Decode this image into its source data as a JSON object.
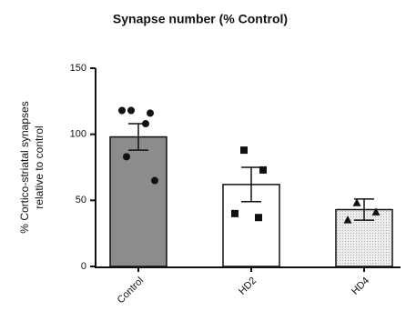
{
  "chart_data": {
    "type": "bar",
    "title": "Synapse number (% Control)",
    "y_label": [
      "% Cortico-striatal synapses",
      "relative to control"
    ],
    "categories": [
      "Control",
      "HD2",
      "HD4"
    ],
    "values": [
      98,
      62,
      43
    ],
    "errors": [
      10,
      13,
      8
    ],
    "points": [
      [
        118,
        116,
        118,
        108,
        83,
        65
      ],
      [
        88,
        73,
        40,
        37
      ],
      [
        48,
        41,
        35
      ]
    ],
    "colors": [
      "#8c8c8c",
      "#ffffff",
      "#ececec"
    ],
    "markers": [
      "circle",
      "square",
      "triangle"
    ],
    "ylim": [
      0,
      150
    ],
    "yticks": [
      0,
      50,
      100,
      150
    ]
  }
}
